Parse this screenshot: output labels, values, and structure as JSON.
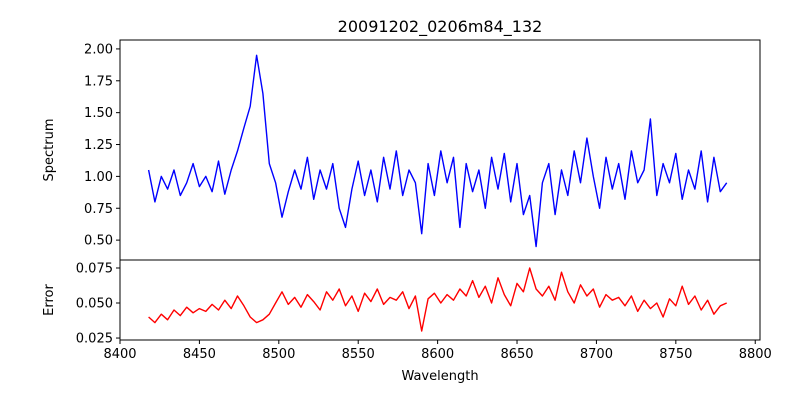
{
  "chart_data": [
    {
      "type": "line",
      "title": "20091202_0206m84_132",
      "xlabel": "",
      "ylabel": "Spectrum",
      "xlim": [
        8400,
        8803
      ],
      "ylim": [
        0.344,
        2.07
      ],
      "xticks": [
        8400,
        8450,
        8500,
        8550,
        8600,
        8650,
        8700,
        8750,
        8800
      ],
      "yticks": [
        "0.50",
        "0.75",
        "1.00",
        "1.25",
        "1.50",
        "1.75",
        "2.00"
      ],
      "color": "#0000ff",
      "x_start": 8418,
      "x_step": 4,
      "values": [
        1.05,
        0.8,
        1.0,
        0.9,
        1.05,
        0.85,
        0.95,
        1.1,
        0.92,
        1.0,
        0.88,
        1.12,
        0.86,
        1.05,
        1.2,
        1.38,
        1.55,
        1.95,
        1.65,
        1.1,
        0.95,
        0.68,
        0.88,
        1.05,
        0.9,
        1.15,
        0.82,
        1.05,
        0.9,
        1.1,
        0.75,
        0.6,
        0.9,
        1.12,
        0.85,
        1.05,
        0.8,
        1.15,
        0.9,
        1.2,
        0.85,
        1.05,
        0.95,
        0.55,
        1.1,
        0.85,
        1.2,
        0.95,
        1.15,
        0.6,
        1.1,
        0.88,
        1.05,
        0.75,
        1.15,
        0.9,
        1.18,
        0.8,
        1.1,
        0.7,
        0.85,
        0.45,
        0.95,
        1.1,
        0.7,
        1.05,
        0.85,
        1.2,
        0.95,
        1.3,
        1.0,
        0.75,
        1.15,
        0.9,
        1.1,
        0.82,
        1.2,
        0.95,
        1.05,
        1.45,
        0.85,
        1.1,
        0.95,
        1.18,
        0.82,
        1.05,
        0.9,
        1.2,
        0.8,
        1.15,
        0.88,
        0.95
      ]
    },
    {
      "type": "line",
      "title": "",
      "xlabel": "Wavelength",
      "ylabel": "Error",
      "xlim": [
        8400,
        8803
      ],
      "ylim": [
        0.0236,
        0.0807
      ],
      "xticks": [
        8400,
        8450,
        8500,
        8550,
        8600,
        8650,
        8700,
        8750,
        8800
      ],
      "yticks": [
        "0.025",
        "0.050",
        "0.075"
      ],
      "color": "#ff0000",
      "x_start": 8418,
      "x_step": 4,
      "values": [
        0.04,
        0.036,
        0.042,
        0.038,
        0.045,
        0.041,
        0.047,
        0.043,
        0.046,
        0.044,
        0.049,
        0.045,
        0.052,
        0.046,
        0.055,
        0.048,
        0.04,
        0.036,
        0.038,
        0.042,
        0.05,
        0.058,
        0.049,
        0.054,
        0.047,
        0.056,
        0.051,
        0.045,
        0.058,
        0.052,
        0.06,
        0.048,
        0.055,
        0.044,
        0.057,
        0.051,
        0.06,
        0.049,
        0.054,
        0.052,
        0.058,
        0.046,
        0.055,
        0.03,
        0.053,
        0.057,
        0.05,
        0.056,
        0.052,
        0.06,
        0.055,
        0.066,
        0.054,
        0.062,
        0.05,
        0.068,
        0.056,
        0.048,
        0.064,
        0.058,
        0.075,
        0.06,
        0.055,
        0.062,
        0.052,
        0.072,
        0.058,
        0.05,
        0.063,
        0.055,
        0.06,
        0.047,
        0.056,
        0.052,
        0.054,
        0.048,
        0.055,
        0.044,
        0.052,
        0.046,
        0.05,
        0.04,
        0.053,
        0.048,
        0.062,
        0.049,
        0.055,
        0.045,
        0.052,
        0.042,
        0.048,
        0.05
      ]
    }
  ]
}
